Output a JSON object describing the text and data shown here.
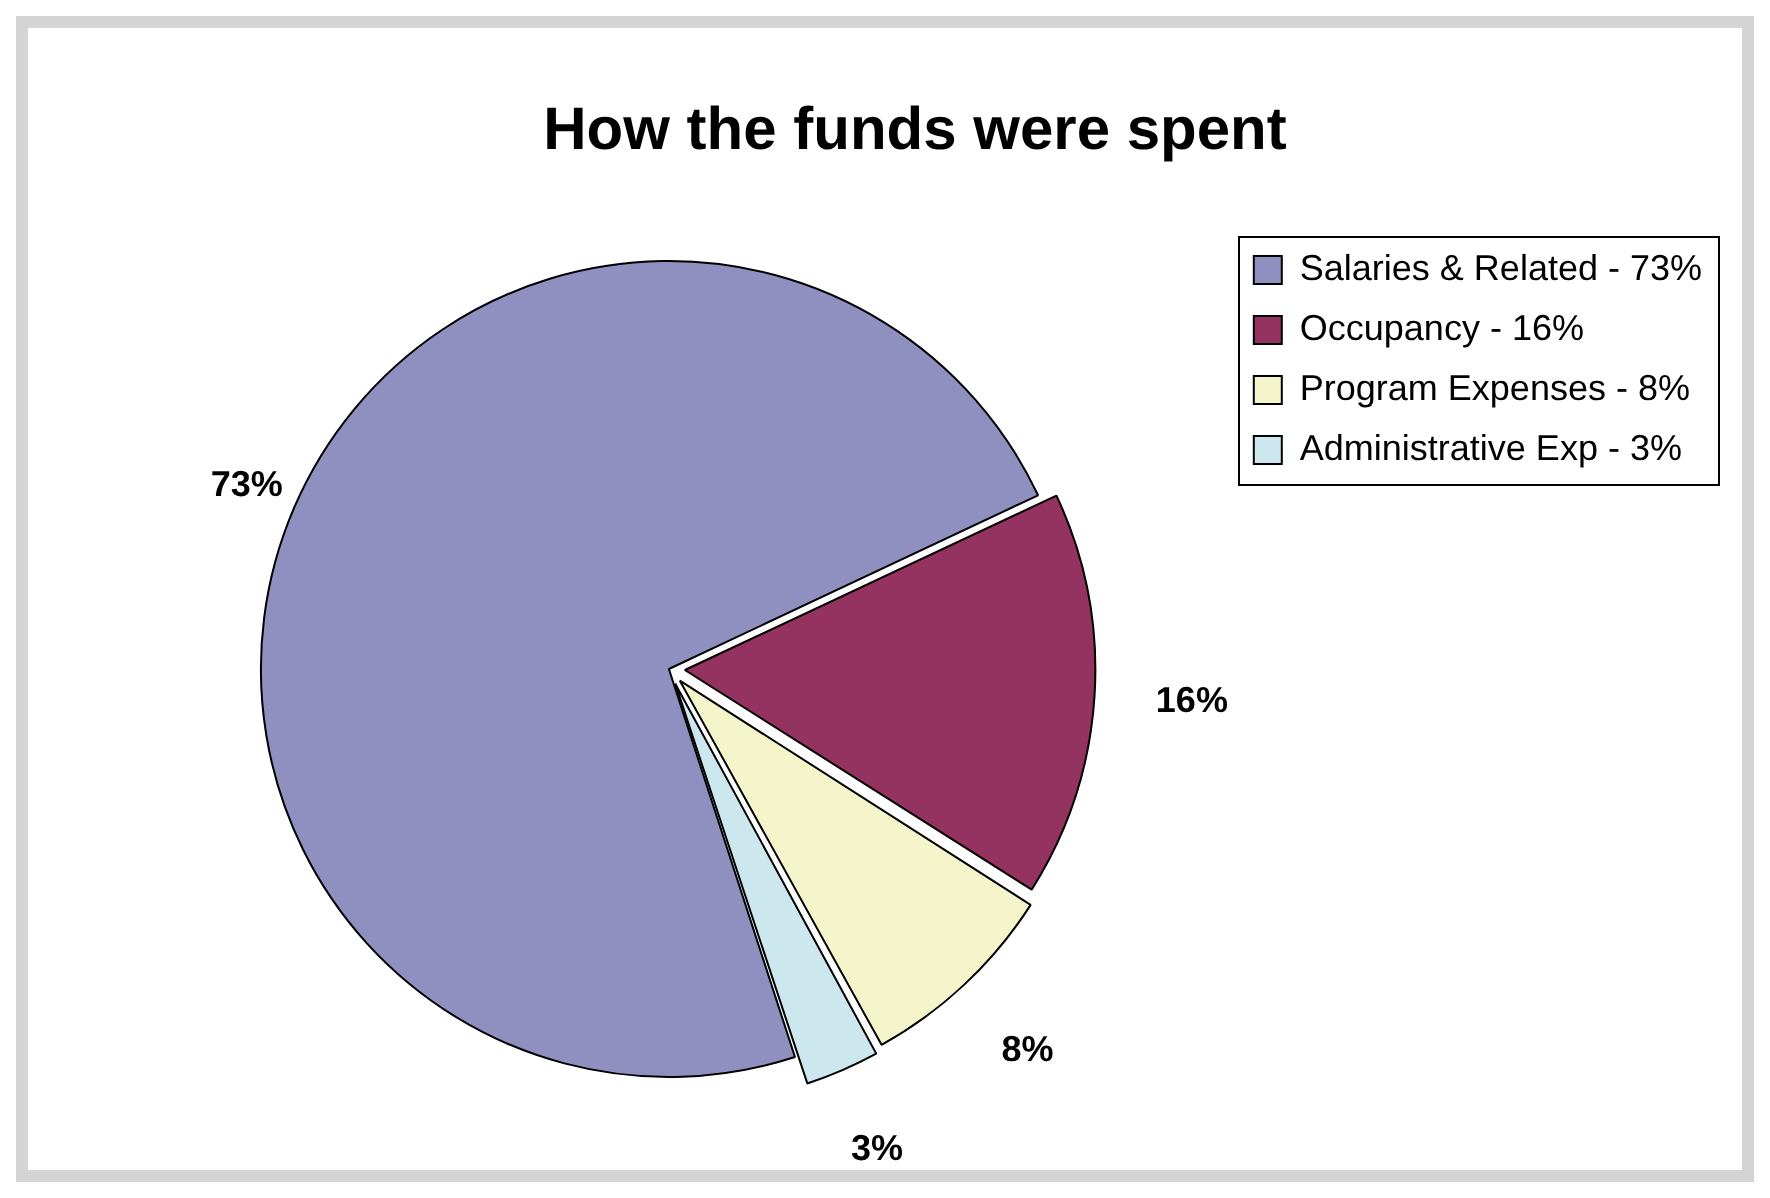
{
  "chart_data": {
    "type": "pie",
    "title": "How the funds were spent",
    "categories": [
      "Salaries & Related - 73%",
      "Occupancy - 16%",
      "Program Expenses - 8%",
      "Administrative Exp - 3%"
    ],
    "values": [
      73,
      16,
      8,
      3
    ],
    "colors": [
      "#9090c0",
      "#943360",
      "#f5f5cc",
      "#cce8ee"
    ],
    "value_labels": [
      "73%",
      "16%",
      "8%",
      "3%"
    ],
    "legend": "right"
  }
}
